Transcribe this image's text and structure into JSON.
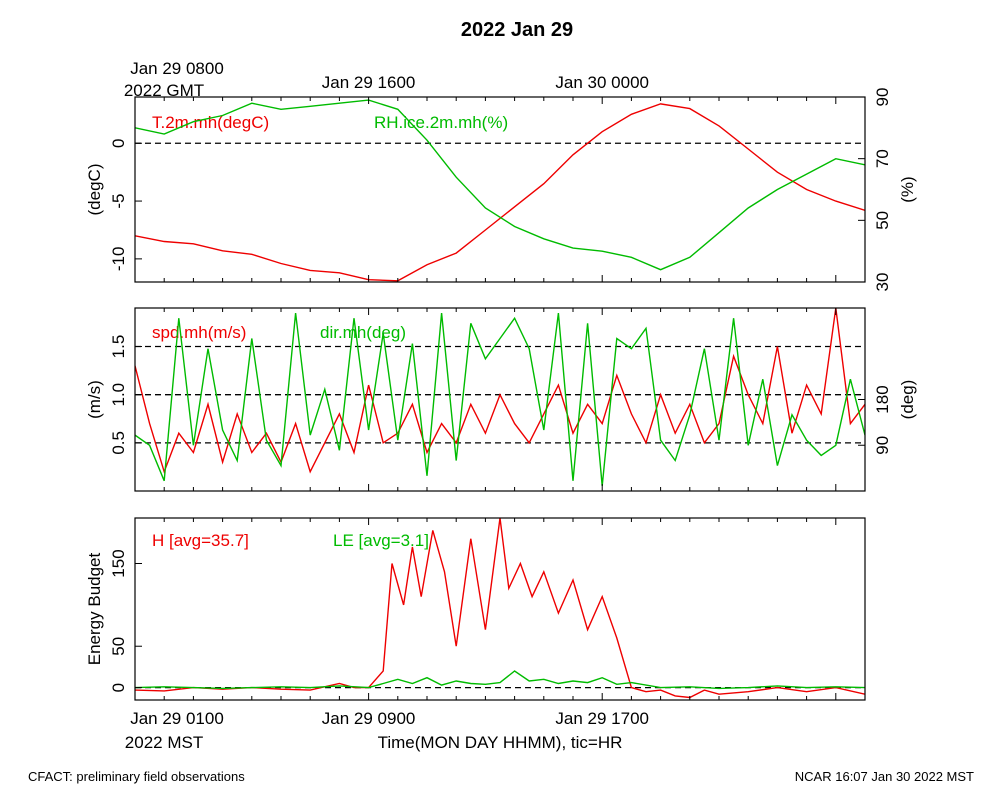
{
  "title": "2022 Jan 29",
  "footer": {
    "left": "CFACT: preliminary field observations",
    "right": "NCAR 16:07 Jan 30 2022 MST"
  },
  "top_axis": {
    "gmt_label": "2022 GMT",
    "ticks": [
      {
        "hour": 0,
        "label": "Jan 29 0800"
      },
      {
        "hour": 8,
        "label": "Jan 29 1600"
      },
      {
        "hour": 16,
        "label": "Jan 30 0000"
      }
    ]
  },
  "bottom_axis": {
    "mst_label": "2022 MST",
    "xlabel": "Time(MON DAY HHMM), tic=HR",
    "ticks": [
      {
        "hour": 0,
        "label": "Jan 29 0100"
      },
      {
        "hour": 8,
        "label": "Jan 29 0900"
      },
      {
        "hour": 16,
        "label": "Jan 29 1700"
      }
    ]
  },
  "colors": {
    "red": "#ee0000",
    "green": "#00bb00",
    "axis": "#000000"
  },
  "chart_data": [
    {
      "type": "line",
      "panel": "temperature_rh",
      "x_hours_range": [
        0,
        25
      ],
      "left_axis": {
        "label": "(degC)",
        "ylim": [
          -12,
          4
        ],
        "ticks": [
          0,
          -5,
          -10
        ],
        "tick_labels": [
          "0",
          "-5",
          "-10"
        ]
      },
      "right_axis": {
        "label": "(%)",
        "ylim": [
          30,
          90
        ],
        "ticks": [
          90,
          70,
          50,
          30
        ],
        "tick_labels": [
          "90",
          "70",
          "50",
          "30"
        ]
      },
      "reference_lines": [
        {
          "axis": "left",
          "value": 0
        }
      ],
      "series": [
        {
          "name": "T.2m.mh(degC)",
          "axis": "left",
          "color": "red",
          "x": [
            0,
            1,
            2,
            3,
            4,
            5,
            6,
            7,
            8,
            9,
            10,
            11,
            12,
            13,
            14,
            15,
            16,
            17,
            18,
            19,
            20,
            21,
            22,
            23,
            24,
            25
          ],
          "values": [
            -8.0,
            -8.5,
            -8.7,
            -9.3,
            -9.6,
            -10.4,
            -11.0,
            -11.2,
            -11.8,
            -11.9,
            -10.5,
            -9.5,
            -7.5,
            -5.5,
            -3.5,
            -1.0,
            1.0,
            2.5,
            3.4,
            3.0,
            1.5,
            -0.5,
            -2.5,
            -4.0,
            -5.0,
            -5.8
          ]
        },
        {
          "name": "RH.ice.2m.mh(%)",
          "axis": "right",
          "color": "green",
          "x": [
            0,
            1,
            2,
            3,
            4,
            5,
            6,
            7,
            8,
            9,
            10,
            11,
            12,
            13,
            14,
            15,
            16,
            17,
            18,
            19,
            20,
            21,
            22,
            23,
            24,
            25
          ],
          "values": [
            80,
            78,
            82,
            84,
            88,
            86,
            87,
            88,
            89,
            86,
            76,
            64,
            54,
            48,
            44,
            41,
            40,
            38,
            34,
            38,
            46,
            54,
            60,
            65,
            70,
            68
          ]
        }
      ]
    },
    {
      "type": "line",
      "panel": "wind",
      "x_hours_range": [
        0,
        25
      ],
      "left_axis": {
        "label": "(m/s)",
        "ylim": [
          0,
          1.9
        ],
        "ticks": [
          0.5,
          1.0,
          1.5
        ],
        "tick_labels": [
          "0.5",
          "1.0",
          "1.5"
        ]
      },
      "right_axis": {
        "label": "(deg)",
        "ylim": [
          0,
          360
        ],
        "ticks": [
          90,
          180
        ],
        "tick_labels": [
          "90",
          "180"
        ]
      },
      "reference_lines": [
        {
          "axis": "left",
          "value": 0.5
        },
        {
          "axis": "left",
          "value": 1.0
        },
        {
          "axis": "left",
          "value": 1.5
        }
      ],
      "series": [
        {
          "name": "spd.mh(m/s)",
          "axis": "left",
          "color": "red",
          "x": [
            0,
            0.5,
            1,
            1.5,
            2,
            2.5,
            3,
            3.5,
            4,
            4.5,
            5,
            5.5,
            6,
            6.5,
            7,
            7.5,
            8,
            8.5,
            9,
            9.5,
            10,
            10.5,
            11,
            11.5,
            12,
            12.5,
            13,
            13.5,
            14,
            14.5,
            15,
            15.5,
            16,
            16.5,
            17,
            17.5,
            18,
            18.5,
            19,
            19.5,
            20,
            20.5,
            21,
            21.5,
            22,
            22.5,
            23,
            23.5,
            24,
            24.5,
            25
          ],
          "values": [
            1.3,
            0.7,
            0.2,
            0.6,
            0.4,
            0.9,
            0.3,
            0.8,
            0.4,
            0.6,
            0.3,
            0.7,
            0.2,
            0.5,
            0.8,
            0.4,
            1.1,
            0.5,
            0.6,
            0.9,
            0.4,
            0.7,
            0.5,
            0.9,
            0.6,
            1.0,
            0.7,
            0.5,
            0.8,
            1.1,
            0.6,
            0.9,
            0.7,
            1.2,
            0.8,
            0.5,
            1.0,
            0.6,
            0.9,
            0.5,
            0.7,
            1.4,
            1.0,
            0.7,
            1.5,
            0.6,
            1.1,
            0.8,
            1.9,
            0.7,
            0.9
          ]
        },
        {
          "name": "dir.mh(deg)",
          "axis": "right",
          "color": "green",
          "x": [
            0,
            0.5,
            1,
            1.5,
            2,
            2.5,
            3,
            3.5,
            4,
            4.5,
            5,
            5.5,
            6,
            6.5,
            7,
            7.5,
            8,
            8.5,
            9,
            9.5,
            10,
            10.5,
            11,
            11.5,
            12,
            12.5,
            13,
            13.5,
            14,
            14.5,
            15,
            15.5,
            16,
            16.5,
            17,
            17.5,
            18,
            18.5,
            19,
            19.5,
            20,
            20.5,
            21,
            21.5,
            22,
            22.5,
            23,
            23.5,
            24,
            24.5,
            25
          ],
          "values": [
            110,
            90,
            20,
            340,
            90,
            280,
            120,
            60,
            300,
            100,
            50,
            350,
            110,
            200,
            80,
            340,
            120,
            310,
            100,
            290,
            30,
            350,
            60,
            330,
            260,
            300,
            340,
            280,
            120,
            350,
            20,
            330,
            10,
            300,
            280,
            320,
            100,
            60,
            150,
            280,
            100,
            340,
            90,
            220,
            50,
            150,
            100,
            70,
            90,
            220,
            110
          ]
        }
      ]
    },
    {
      "type": "line",
      "panel": "energy_budget",
      "x_hours_range": [
        0,
        25
      ],
      "left_axis": {
        "label": "Energy Budget",
        "ylim": [
          -15,
          205
        ],
        "ticks": [
          0,
          50,
          150
        ],
        "tick_labels": [
          "0",
          "50",
          "150"
        ]
      },
      "reference_lines": [
        {
          "axis": "left",
          "value": 0
        }
      ],
      "series": [
        {
          "name": "H [avg=35.7]",
          "axis": "left",
          "color": "red",
          "x": [
            0,
            1,
            2,
            3,
            4,
            5,
            6,
            7,
            7.5,
            8,
            8.5,
            8.8,
            9.2,
            9.5,
            9.8,
            10.2,
            10.6,
            11,
            11.5,
            12,
            12.5,
            12.8,
            13.2,
            13.6,
            14,
            14.5,
            15,
            15.5,
            16,
            16.5,
            17,
            17.5,
            18,
            18.5,
            19,
            19.5,
            20,
            21,
            22,
            23,
            24,
            25
          ],
          "values": [
            -3,
            -4,
            0,
            -2,
            0,
            -2,
            -3,
            5,
            0,
            0,
            20,
            150,
            100,
            170,
            110,
            190,
            140,
            50,
            180,
            70,
            205,
            120,
            150,
            110,
            140,
            90,
            130,
            70,
            110,
            60,
            0,
            -5,
            -3,
            -10,
            -12,
            -3,
            -8,
            -5,
            0,
            -5,
            0,
            -8
          ]
        },
        {
          "name": "LE [avg=3.1]",
          "axis": "left",
          "color": "green",
          "x": [
            0,
            1,
            2,
            3,
            4,
            5,
            6,
            7,
            8,
            8.5,
            9,
            9.5,
            10,
            10.5,
            11,
            11.5,
            12,
            12.5,
            13,
            13.5,
            14,
            14.5,
            15,
            15.5,
            16,
            16.5,
            17,
            18,
            19,
            20,
            21,
            22,
            23,
            24,
            25
          ],
          "values": [
            0,
            1,
            0,
            -1,
            0,
            1,
            0,
            2,
            0,
            5,
            10,
            5,
            12,
            3,
            8,
            5,
            4,
            6,
            20,
            8,
            10,
            5,
            8,
            6,
            12,
            4,
            6,
            0,
            1,
            -1,
            0,
            2,
            0,
            1,
            0
          ]
        }
      ]
    }
  ]
}
